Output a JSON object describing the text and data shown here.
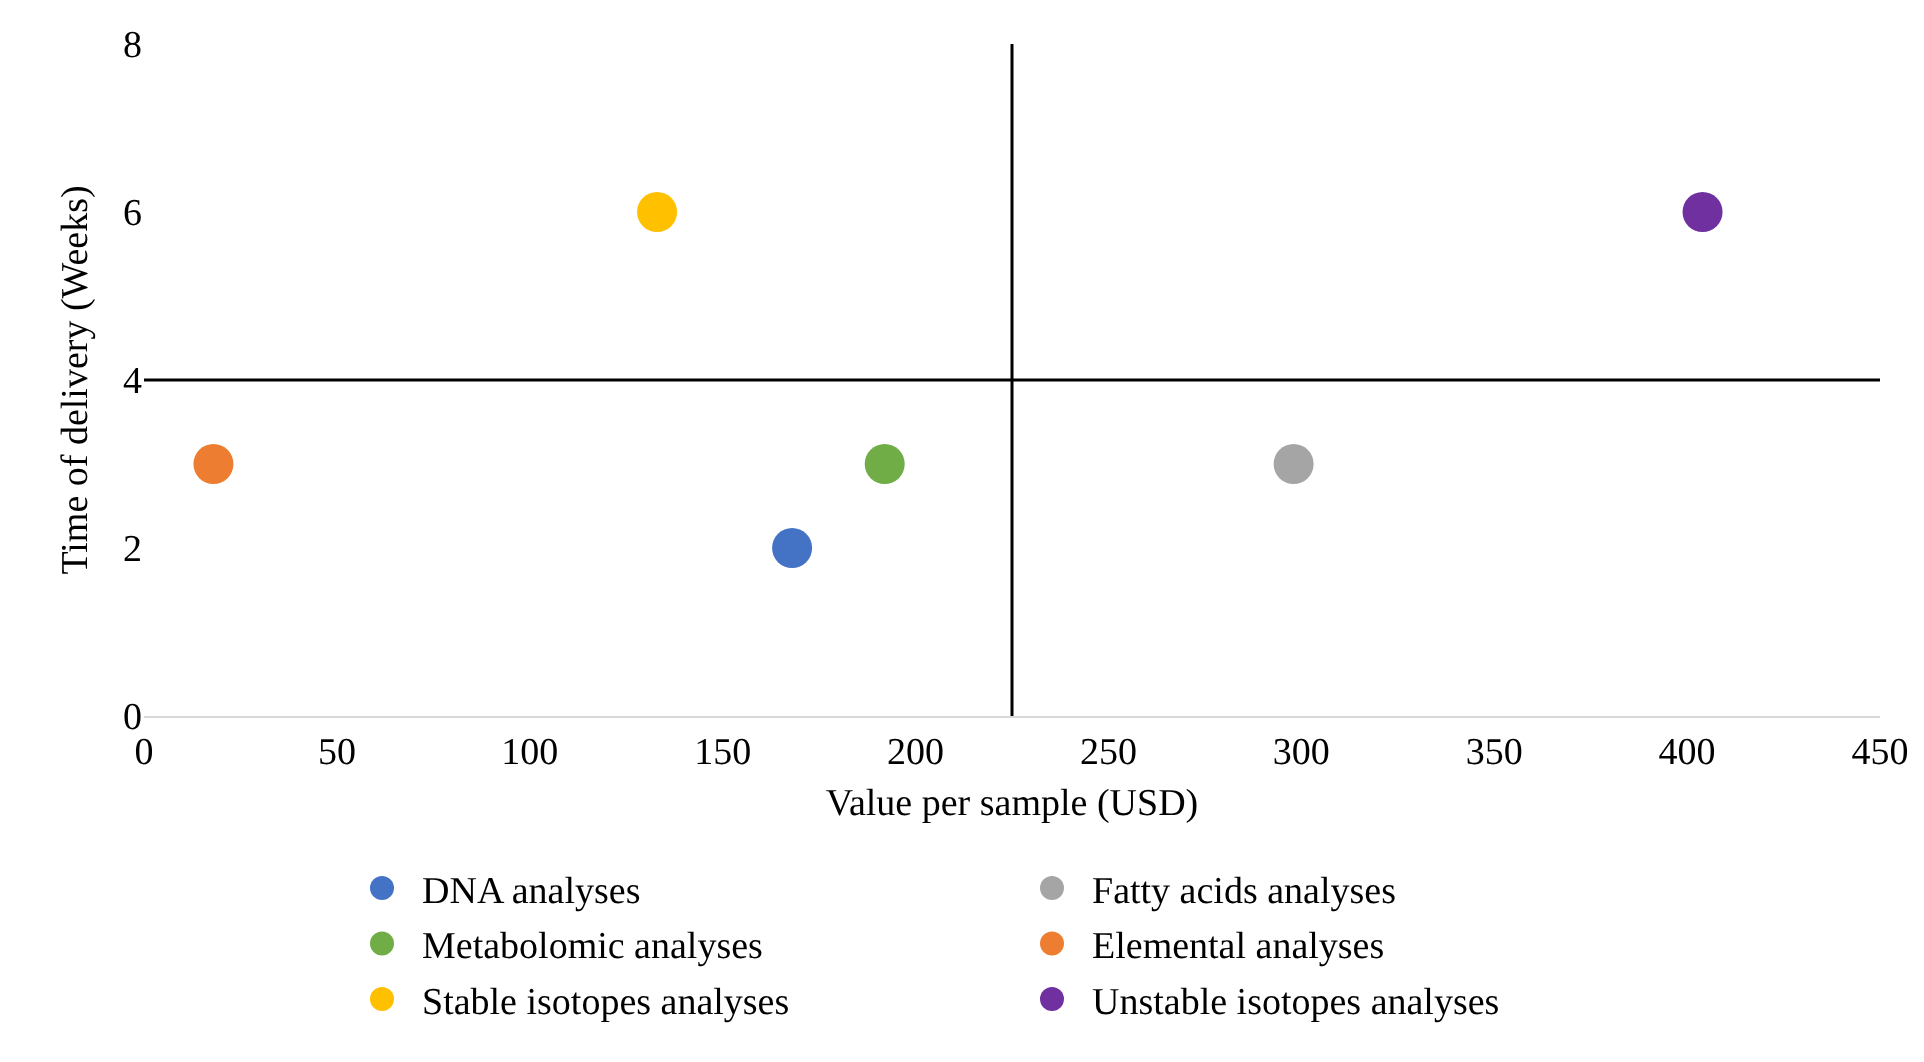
{
  "chart_data": {
    "type": "scatter",
    "xlabel": "Value per sample (USD)",
    "ylabel": "Time of delivery (Weeks)",
    "xlim": [
      0,
      450
    ],
    "xticks": [
      0,
      50,
      100,
      150,
      200,
      250,
      300,
      350,
      400,
      450
    ],
    "ylim": [
      0,
      8
    ],
    "yticks": [
      0,
      2,
      4,
      6,
      8
    ],
    "grid": false,
    "legend": "bottom",
    "marker": "circle",
    "series": [
      {
        "name": "DNA analyses",
        "color": "#4472c4",
        "x": [
          168
        ],
        "values": [
          2
        ]
      },
      {
        "name": "Fatty acids analyses",
        "color": "#a5a5a5",
        "x": [
          298
        ],
        "values": [
          3
        ]
      },
      {
        "name": "Metabolomic analyses",
        "color": "#70ad47",
        "x": [
          192
        ],
        "values": [
          3
        ]
      },
      {
        "name": "Elemental analyses",
        "color": "#ed7d31",
        "x": [
          18
        ],
        "values": [
          3
        ]
      },
      {
        "name": "Stable isotopes analyses",
        "color": "#ffc000",
        "x": [
          133
        ],
        "values": [
          6
        ]
      },
      {
        "name": "Unstable isotopes analyses",
        "color": "#7030a0",
        "x": [
          404
        ],
        "values": [
          6
        ]
      }
    ],
    "ref_lines": [
      {
        "axis": "x",
        "value": 225,
        "color": "#000000"
      },
      {
        "axis": "y",
        "value": 4,
        "color": "#000000"
      }
    ]
  }
}
